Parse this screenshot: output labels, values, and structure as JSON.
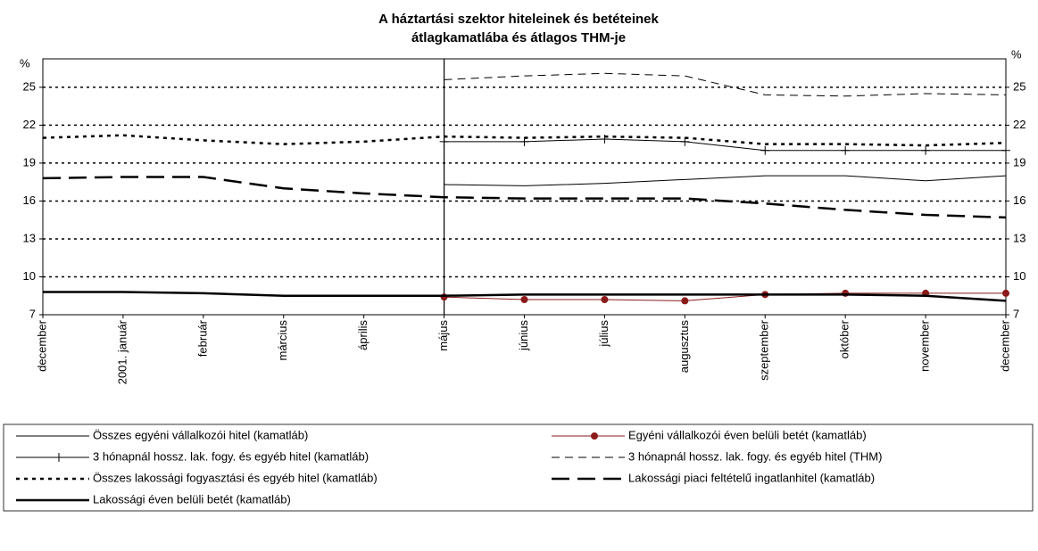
{
  "chart_data": {
    "type": "line",
    "title": "A háztartási szektor hiteleinek és betéteinek",
    "subtitle": "átlagkamatlába és átlagos THM-je",
    "y_label": "%",
    "y2_label": "%",
    "categories": [
      "december",
      "2001. január",
      "február",
      "március",
      "április",
      "május",
      "június",
      "július",
      "augusztus",
      "szeptember",
      "október",
      "november",
      "december"
    ],
    "vline": "május",
    "ylim": [
      7,
      27.25
    ],
    "yticks": [
      7,
      10,
      13,
      16,
      19,
      22,
      25
    ],
    "grid": true,
    "series": [
      {
        "name": "Összes egyéni vállalkozói hitel (kamatláb)",
        "color": "#000000",
        "dash": "solid",
        "width": 1,
        "marker": "none",
        "values": [
          null,
          null,
          null,
          null,
          null,
          17.3,
          17.2,
          17.4,
          17.7,
          18.0,
          18.0,
          17.6,
          18.0
        ]
      },
      {
        "name": "Egyéni vállalkozói éven belüli betét (kamatláb)",
        "color": "#8b1a1a",
        "dash": "solid",
        "width": 1,
        "marker": "circle",
        "values": [
          null,
          null,
          null,
          null,
          null,
          8.4,
          8.2,
          8.2,
          8.1,
          8.6,
          8.7,
          8.7,
          8.7
        ]
      },
      {
        "name": "3 hónapnál hossz. lak. fogy. és egyéb hitel (kamatláb)",
        "color": "#000000",
        "dash": "solid",
        "width": 1,
        "marker": "plus",
        "values": [
          null,
          null,
          null,
          null,
          null,
          20.7,
          20.7,
          20.9,
          20.7,
          20.0,
          20.0,
          20.0,
          20.0
        ]
      },
      {
        "name": "3 hónapnál hossz. lak. fogy. és egyéb hitel (THM)",
        "color": "#000000",
        "dash": "dashed",
        "width": 1,
        "marker": "none",
        "values": [
          null,
          null,
          null,
          null,
          null,
          25.6,
          25.9,
          26.1,
          25.9,
          24.4,
          24.3,
          24.5,
          24.4
        ]
      },
      {
        "name": "Összes lakossági fogyasztási és egyéb hitel (kamatláb)",
        "color": "#000000",
        "dash": "dotted",
        "width": 2.5,
        "marker": "none",
        "values": [
          21.0,
          21.2,
          20.8,
          20.5,
          20.7,
          21.1,
          21.0,
          21.1,
          21.0,
          20.5,
          20.5,
          20.4,
          20.6
        ]
      },
      {
        "name": "Lakossági piaci feltételű ingatlanhitel (kamatláb)",
        "color": "#000000",
        "dash": "longdash",
        "width": 2.5,
        "marker": "none",
        "values": [
          17.8,
          17.9,
          17.9,
          17.0,
          16.6,
          16.3,
          16.2,
          16.2,
          16.2,
          15.8,
          15.3,
          14.9,
          14.7
        ]
      },
      {
        "name": "Lakossági éven belüli betét (kamatláb)",
        "color": "#000000",
        "dash": "solid",
        "width": 2.5,
        "marker": "none",
        "values": [
          8.8,
          8.8,
          8.7,
          8.5,
          8.5,
          8.5,
          8.6,
          8.6,
          8.6,
          8.6,
          8.6,
          8.5,
          8.1
        ]
      }
    ]
  }
}
